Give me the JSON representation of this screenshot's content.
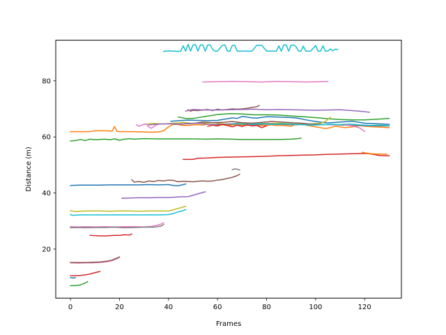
{
  "chart_data": {
    "type": "line",
    "title": "",
    "xlabel": "Frames",
    "ylabel": "Distance (m)",
    "xlim": [
      -6,
      135
    ],
    "ylim": [
      2.5,
      94.5
    ],
    "xticks": [
      0,
      20,
      40,
      60,
      80,
      100,
      120
    ],
    "yticks": [
      20,
      40,
      60,
      80
    ],
    "grid": false,
    "series": [
      {
        "color": "#17becf",
        "x": [
          38,
          40,
          42,
          44,
          45,
          46,
          47,
          48,
          49,
          50,
          51,
          52,
          53,
          54,
          55,
          56,
          57,
          58,
          59,
          60,
          62,
          63,
          64,
          65,
          66,
          67,
          68,
          69,
          70,
          72,
          74,
          76,
          78,
          80,
          82,
          84,
          85,
          86,
          87,
          88,
          89,
          90,
          91,
          92,
          93,
          94,
          95,
          96,
          98,
          100,
          101,
          102,
          103,
          104,
          105,
          106,
          107,
          108,
          109
        ],
        "y": [
          90.5,
          90.7,
          90.6,
          90.5,
          90.6,
          92.5,
          90.6,
          93,
          90.6,
          92.8,
          92.9,
          90.6,
          92.8,
          92.8,
          90.6,
          92.8,
          92.8,
          91.2,
          90.6,
          90.6,
          92.7,
          92.8,
          90.6,
          90.6,
          92.6,
          92.7,
          90.6,
          90.6,
          90.6,
          90.6,
          90.6,
          92.7,
          92.7,
          90.6,
          90.6,
          90.6,
          92.5,
          90.6,
          92.8,
          92.8,
          90.6,
          92.7,
          92.8,
          92.2,
          90.6,
          90.6,
          92.4,
          90.6,
          90.6,
          92.6,
          90.6,
          90.6,
          92.5,
          90.6,
          90.6,
          91.4,
          90.7,
          91.3,
          91.2
        ]
      },
      {
        "color": "#e377c2",
        "x": [
          54,
          60,
          66,
          72,
          78,
          84,
          90,
          96,
          102,
          105
        ],
        "y": [
          79.6,
          79.7,
          79.8,
          79.7,
          79.6,
          79.8,
          79.7,
          79.6,
          79.7,
          79.8
        ]
      },
      {
        "color": "#8c564b",
        "x": [
          48,
          49,
          50,
          52,
          54,
          56,
          58,
          60,
          62,
          64,
          66,
          68,
          70,
          72,
          74,
          76,
          77
        ],
        "y": [
          69.7,
          69.2,
          69.5,
          69.4,
          69.6,
          69.8,
          69.4,
          69.9,
          69.6,
          69.8,
          70,
          69.9,
          70,
          70.2,
          70.5,
          70.8,
          71.2
        ]
      },
      {
        "color": "#9467bd",
        "x": [
          47,
          50,
          55,
          60,
          65,
          70,
          75,
          80,
          85,
          90,
          95,
          100,
          105,
          110,
          115,
          120,
          122
        ],
        "y": [
          69.2,
          69.8,
          69.6,
          69.6,
          69.7,
          69.8,
          69.9,
          69.7,
          69.8,
          69.7,
          69.6,
          69.5,
          69.6,
          69.7,
          69.4,
          69,
          68.8
        ]
      },
      {
        "color": "#2ca02c",
        "x": [
          44,
          47,
          50,
          55,
          60,
          65,
          70,
          75,
          80,
          85,
          90,
          95,
          100,
          105,
          110,
          115,
          120,
          125,
          130
        ],
        "y": [
          67.1,
          66.6,
          66.6,
          67.3,
          68,
          68.3,
          68.2,
          67.9,
          67.9,
          67.8,
          67.5,
          67.2,
          66.9,
          66.5,
          66.2,
          66.1,
          66.1,
          66.3,
          66.6
        ]
      },
      {
        "color": "#1f77b4",
        "x": [
          41,
          44,
          48,
          52,
          56,
          60,
          62,
          64,
          66,
          68,
          70,
          72,
          74,
          76,
          80,
          84,
          88,
          92,
          96,
          100,
          105,
          110,
          115,
          120,
          125,
          130
        ],
        "y": [
          65.6,
          65.8,
          66,
          65.9,
          65.8,
          65.9,
          66.2,
          66.5,
          66.8,
          66.6,
          67.3,
          67.1,
          66.8,
          66.7,
          67.2,
          67.1,
          67,
          66.8,
          66.1,
          65.5,
          65,
          65.3,
          65.6,
          64.9,
          64.7,
          64.5
        ]
      },
      {
        "color": "#ff7f0e",
        "x": [
          0,
          2,
          4,
          6,
          8,
          10,
          12,
          14,
          16,
          17,
          18,
          19,
          20,
          22,
          24,
          26,
          28,
          30,
          32,
          34,
          36,
          38,
          40,
          42,
          44,
          46,
          48,
          50,
          52,
          54,
          56,
          58,
          60,
          62,
          64,
          66,
          68,
          70,
          72,
          74,
          76,
          78,
          80,
          82,
          84,
          86,
          88,
          90,
          92,
          94,
          96,
          98,
          100,
          102,
          104,
          106,
          108,
          110,
          112,
          114,
          116,
          118,
          120,
          122,
          124,
          126,
          128,
          130
        ],
        "y": [
          61.9,
          61.9,
          61.9,
          61.9,
          61.9,
          62.2,
          62.2,
          62.2,
          62.1,
          62.1,
          63.7,
          62,
          61.9,
          61.9,
          61.9,
          61.9,
          61.8,
          61.8,
          61.7,
          61.7,
          61.8,
          62.2,
          63.6,
          64.6,
          64.4,
          64.1,
          64.1,
          64.3,
          64.4,
          64.2,
          64.6,
          64.3,
          64.2,
          64.3,
          64.1,
          64.3,
          64.3,
          64.2,
          64.1,
          64.3,
          64.1,
          64.1,
          64.1,
          64.3,
          64.1,
          64.2,
          64,
          63.8,
          64.6,
          64.9,
          64.2,
          63.9,
          63.6,
          63.3,
          63,
          63.3,
          63.8,
          63.6,
          63.3,
          63.5,
          63.7,
          64,
          63.8,
          63.7,
          63.6,
          63.5,
          63.4,
          63.3
        ]
      },
      {
        "color": "#bcbd22",
        "x": [
          30,
          34,
          38,
          42,
          46,
          50,
          54,
          58,
          62,
          66,
          70,
          74,
          78,
          82,
          86,
          90,
          94,
          98,
          102,
          104,
          106
        ],
        "y": [
          64.5,
          64.8,
          64.6,
          64.9,
          65.2,
          64.8,
          64.9,
          65.1,
          64.7,
          64.6,
          65,
          64.8,
          64.9,
          64.8,
          64.9,
          64.7,
          64.5,
          64.7,
          64.9,
          65.5,
          67
        ]
      },
      {
        "color": "#8c564b",
        "x": [
          42,
          46,
          50,
          54,
          58,
          62,
          66,
          70,
          74,
          78,
          82,
          86,
          90,
          94,
          98
        ],
        "y": [
          64.5,
          64.6,
          64.8,
          65.3,
          65.1,
          65.2,
          65.5,
          65.1,
          64.9,
          65.2,
          65.5,
          65.3,
          65.1,
          64.9,
          64.6
        ]
      },
      {
        "color": "#e377c2",
        "x": [
          27,
          28,
          29,
          30,
          31,
          32,
          33,
          34,
          35,
          36
        ],
        "y": [
          64.3,
          63.8,
          64.2,
          64.5,
          64.6,
          63.5,
          63.1,
          63.7,
          64.3,
          64.5
        ]
      },
      {
        "color": "#9467bd",
        "x": [
          32,
          36,
          40,
          44,
          48,
          52,
          56,
          60,
          64,
          68,
          72,
          76,
          80,
          84,
          88,
          92
        ],
        "y": [
          64.3,
          64.6,
          64.7,
          64.6,
          64.8,
          64.9,
          64.5,
          64.4,
          64.6,
          64.8,
          64.3,
          64.4,
          64.7,
          64.6,
          64.5,
          64.4
        ]
      },
      {
        "color": "#7f7f7f",
        "x": [
          60,
          64,
          68,
          72,
          76,
          80,
          84,
          88,
          92,
          96,
          100,
          104,
          108,
          112,
          116,
          120,
          124,
          128,
          130
        ],
        "y": [
          64.6,
          64.5,
          64.7,
          64.5,
          64.3,
          64.6,
          64.5,
          64.4,
          64.3,
          64.5,
          64.6,
          64.4,
          64.3,
          64.2,
          64.1,
          64,
          63.9,
          63.9,
          63.9
        ]
      },
      {
        "color": "#17becf",
        "x": [
          66,
          70,
          74,
          78,
          82,
          86,
          90,
          94,
          98,
          102,
          106,
          110,
          114,
          118,
          122,
          126,
          130
        ],
        "y": [
          64.7,
          64.6,
          64.5,
          64.8,
          64.4,
          64.7,
          64.6,
          64.4,
          64.2,
          64.3,
          64.5,
          64.4,
          64.6,
          64.3,
          64.1,
          64.2,
          64
        ]
      },
      {
        "color": "#d62728",
        "x": [
          56,
          58,
          60,
          62,
          64,
          66,
          68,
          70,
          72,
          74,
          76,
          78,
          80
        ],
        "y": [
          63.8,
          64.2,
          63.9,
          64.5,
          64.1,
          63.6,
          64.2,
          63.7,
          64.4,
          63.9,
          64.1,
          63.3,
          64
        ]
      },
      {
        "color": "#e377c2",
        "x": [
          112,
          114,
          116,
          118,
          119,
          120
        ],
        "y": [
          64.3,
          64.1,
          63.7,
          63.2,
          62.6,
          62
        ]
      },
      {
        "color": "#2ca02c",
        "x": [
          0,
          2,
          4,
          6,
          8,
          10,
          12,
          14,
          16,
          18,
          20,
          22,
          24,
          26,
          28,
          30,
          35,
          40,
          45,
          50,
          55,
          60,
          65,
          70,
          75,
          80,
          85,
          90,
          93,
          94
        ],
        "y": [
          58.6,
          58.7,
          59.1,
          58.7,
          59.2,
          59,
          59.1,
          59.2,
          59,
          59.3,
          58.8,
          59.2,
          59.4,
          59.2,
          59.3,
          59.4,
          59.3,
          59.3,
          59.3,
          59.3,
          59.2,
          59.3,
          59.2,
          59.1,
          59.1,
          59.1,
          59.1,
          59.2,
          59.4,
          59.6
        ]
      },
      {
        "color": "#d62728",
        "x": [
          46,
          50,
          52,
          56,
          60,
          65,
          70,
          75,
          80,
          85,
          90,
          95,
          100,
          105,
          110,
          115,
          120,
          122,
          124,
          126,
          128,
          130
        ],
        "y": [
          52,
          52,
          52.4,
          52.5,
          52.7,
          52.8,
          52.9,
          53,
          53.1,
          53.3,
          53.4,
          53.5,
          53.6,
          53.8,
          53.9,
          54,
          54.1,
          54,
          53.7,
          53.4,
          53.3,
          53.3
        ]
      },
      {
        "color": "#ff7f0e",
        "x": [
          119,
          121,
          123,
          125,
          127,
          129
        ],
        "y": [
          54.5,
          54.2,
          54,
          53.9,
          53.9,
          53.8
        ]
      },
      {
        "color": "#1f77b4",
        "x": [
          0,
          4,
          8,
          12,
          16,
          20,
          24,
          28,
          32,
          36,
          40,
          42,
          44,
          46,
          47
        ],
        "y": [
          42.7,
          42.8,
          42.8,
          42.8,
          42.9,
          42.9,
          42.9,
          42.9,
          43,
          42.9,
          43,
          42.7,
          42.6,
          43,
          43.2
        ]
      },
      {
        "color": "#8c564b",
        "x": [
          25,
          26,
          28,
          30,
          32,
          34,
          36,
          38,
          40,
          42,
          44,
          46,
          48,
          50,
          52,
          54,
          56,
          58,
          60,
          62,
          64,
          66,
          68,
          69
        ],
        "y": [
          44.7,
          43.9,
          44.1,
          43.8,
          44.3,
          44.1,
          44.5,
          44.3,
          44.6,
          44.5,
          44,
          44.2,
          44.1,
          44,
          44.2,
          44.3,
          44.2,
          44.3,
          44.6,
          44.8,
          45.2,
          45.6,
          46.2,
          46.7
        ]
      },
      {
        "color": "#7f7f7f",
        "x": [
          66,
          67,
          68,
          69
        ],
        "y": [
          48.3,
          48.6,
          48.5,
          48.2
        ]
      },
      {
        "color": "#9467bd",
        "x": [
          21,
          24,
          28,
          32,
          36,
          40,
          44,
          48,
          50,
          52,
          54,
          55
        ],
        "y": [
          38.1,
          38.2,
          38.3,
          38.3,
          38.4,
          38.4,
          38.6,
          38.7,
          39.2,
          39.7,
          40.2,
          40.4
        ]
      },
      {
        "color": "#bcbd22",
        "x": [
          0,
          2,
          4,
          8,
          12,
          16,
          20,
          24,
          28,
          32,
          36,
          40,
          42,
          44,
          46,
          47
        ],
        "y": [
          33.7,
          33.4,
          33.5,
          33.6,
          33.6,
          33.5,
          33.6,
          33.6,
          33.5,
          33.6,
          33.6,
          33.6,
          34,
          34.5,
          35,
          35.3
        ]
      },
      {
        "color": "#17becf",
        "x": [
          0,
          1,
          2,
          4,
          8,
          12,
          16,
          20,
          24,
          28,
          32,
          36,
          40,
          42,
          44,
          46,
          47
        ],
        "y": [
          32.3,
          32,
          32.1,
          32.2,
          32.2,
          32.2,
          32.2,
          32.2,
          32.2,
          32.2,
          32.2,
          32.2,
          32.3,
          32.7,
          33.3,
          33.7,
          34.1
        ]
      },
      {
        "color": "#e377c2",
        "x": [
          0,
          3,
          6,
          10,
          14,
          18,
          22,
          26,
          30,
          33,
          35,
          37,
          38
        ],
        "y": [
          28,
          27.9,
          28,
          27.9,
          28,
          27.9,
          28,
          28,
          27.9,
          28.1,
          28.4,
          28.9,
          29.4
        ]
      },
      {
        "color": "#7f7f7f",
        "x": [
          0,
          3,
          6,
          10,
          14,
          18,
          22,
          26,
          30,
          34,
          37,
          38
        ],
        "y": [
          27.6,
          27.7,
          27.6,
          27.7,
          27.7,
          27.8,
          27.6,
          27.7,
          27.8,
          27.8,
          28.2,
          28.8
        ]
      },
      {
        "color": "#d62728",
        "x": [
          8,
          10,
          12,
          14,
          16,
          18,
          20,
          22,
          24,
          25
        ],
        "y": [
          24.9,
          24.8,
          24.7,
          24.7,
          24.8,
          24.9,
          24.9,
          25.1,
          25,
          25.4
        ]
      },
      {
        "color": "#e377c2",
        "x": [
          0,
          3,
          6,
          9,
          12,
          15,
          17,
          19,
          20
        ],
        "y": [
          15.1,
          15,
          15.1,
          15.1,
          15.2,
          15.5,
          15.9,
          16.6,
          17.1
        ]
      },
      {
        "color": "#8c564b",
        "x": [
          0,
          3,
          6,
          9,
          12,
          15,
          17,
          19,
          20
        ],
        "y": [
          15.2,
          15.2,
          15.2,
          15.3,
          15.4,
          15.7,
          16.1,
          16.8,
          17.2
        ]
      },
      {
        "color": "#d62728",
        "x": [
          0,
          2,
          4,
          6,
          8,
          10,
          12
        ],
        "y": [
          10.5,
          10.5,
          10.6,
          10.8,
          11.1,
          11.6,
          12
        ]
      },
      {
        "color": "#1f77b4",
        "x": [
          0,
          1,
          2
        ],
        "y": [
          9.8,
          9.7,
          9.8
        ]
      },
      {
        "color": "#2ca02c",
        "x": [
          0,
          2,
          4,
          6,
          7
        ],
        "y": [
          6.9,
          7,
          7.2,
          7.9,
          8.4
        ]
      }
    ]
  }
}
